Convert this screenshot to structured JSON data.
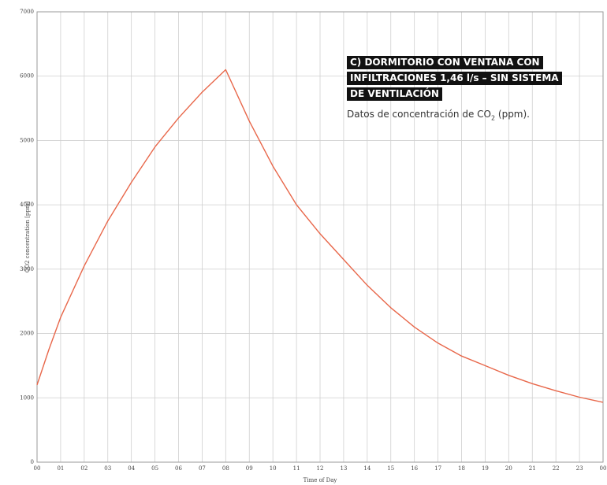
{
  "annotation": {
    "title_lines": [
      "C) DORMITORIO CON VENTANA CON",
      "INFILTRACIONES 1,46 l/s – SIN SISTEMA",
      "DE VENTILACIÓN"
    ],
    "subtitle_prefix": "Datos de concentración de CO",
    "subtitle_subscript": "2",
    "subtitle_suffix": " (ppm)."
  },
  "chart_data": {
    "type": "line",
    "title": "C) DORMITORIO CON VENTANA CON INFILTRACIONES 1,46 l/s – SIN SISTEMA DE VENTILACIÓN",
    "xlabel": "Time of Day",
    "ylabel": "CO2 concentration [ppm]",
    "ylim": [
      0,
      7000
    ],
    "yticks": [
      0,
      1000,
      2000,
      3000,
      4000,
      5000,
      6000,
      7000
    ],
    "ytick_labels": [
      "0",
      "1000",
      "2000",
      "3000",
      "4000",
      "5000",
      "6000",
      "7000"
    ],
    "xlim": [
      0,
      24
    ],
    "xtick_labels": [
      "00",
      "01",
      "02",
      "03",
      "04",
      "05",
      "06",
      "07",
      "08",
      "09",
      "10",
      "11",
      "12",
      "13",
      "14",
      "15",
      "16",
      "17",
      "18",
      "19",
      "20",
      "21",
      "22",
      "23",
      "00"
    ],
    "grid": true,
    "line_color": "#e8674a",
    "series": [
      {
        "x": [
          0,
          0.5,
          1,
          2,
          3,
          4,
          5,
          6,
          7,
          8,
          9,
          10,
          11,
          12,
          13,
          14,
          15,
          16,
          17,
          18,
          19,
          20,
          21,
          22,
          23,
          24
        ],
        "values": [
          1200,
          1750,
          2250,
          3050,
          3750,
          4350,
          4900,
          5350,
          5750,
          6100,
          5300,
          4600,
          4000,
          3550,
          3150,
          2750,
          2400,
          2100,
          1850,
          1650,
          1500,
          1350,
          1220,
          1110,
          1010,
          930
        ]
      }
    ]
  }
}
